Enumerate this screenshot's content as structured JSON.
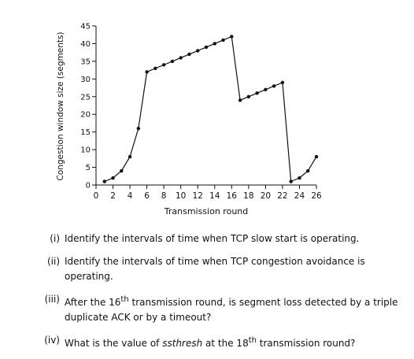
{
  "chart_data": {
    "type": "line",
    "xlabel": "Transmission round",
    "ylabel": "Congestion window size (segments)",
    "xlim": [
      0,
      26
    ],
    "ylim": [
      0,
      45
    ],
    "x_ticks": [
      0,
      2,
      4,
      6,
      8,
      10,
      12,
      14,
      16,
      18,
      20,
      22,
      24,
      26
    ],
    "y_ticks": [
      0,
      5,
      10,
      15,
      20,
      25,
      30,
      35,
      40,
      45
    ],
    "grid": false,
    "series": [
      {
        "x": [
          1,
          2,
          3,
          4,
          5,
          6,
          7,
          8,
          9,
          10,
          11,
          12,
          13,
          14,
          15,
          16,
          17,
          18,
          19,
          20,
          21,
          22,
          23,
          24,
          25,
          26
        ],
        "values": [
          1,
          2,
          4,
          8,
          16,
          32,
          33,
          34,
          35,
          36,
          37,
          38,
          39,
          40,
          41,
          42,
          24,
          25,
          26,
          27,
          28,
          29,
          1,
          2,
          4,
          8
        ]
      }
    ]
  },
  "questions": [
    {
      "num": "(i)",
      "text": "Identify the intervals of time when TCP slow start is operating."
    },
    {
      "num": "(ii)",
      "text": "Identify the intervals of time when TCP congestion avoidance is operating."
    },
    {
      "num": "(iii)",
      "text_before": "After the 16",
      "sup": "th",
      "text_after": " transmission round, is segment loss detected by a triple duplicate ACK or by a timeout?"
    },
    {
      "num": "(iv)",
      "text_before": "What is the value of ",
      "italic": "ssthresh",
      "text_mid": " at the 18",
      "sup": "th",
      "text_after": " transmission round?"
    }
  ]
}
